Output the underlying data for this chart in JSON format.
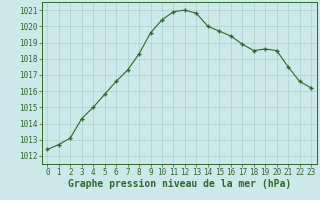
{
  "x": [
    0,
    1,
    2,
    3,
    4,
    5,
    6,
    7,
    8,
    9,
    10,
    11,
    12,
    13,
    14,
    15,
    16,
    17,
    18,
    19,
    20,
    21,
    22,
    23
  ],
  "y": [
    1012.4,
    1012.7,
    1013.1,
    1014.3,
    1015.0,
    1015.8,
    1016.6,
    1017.3,
    1018.3,
    1019.6,
    1020.4,
    1020.9,
    1021.0,
    1020.8,
    1020.0,
    1019.7,
    1019.4,
    1018.9,
    1018.5,
    1018.6,
    1018.5,
    1017.5,
    1016.6,
    1016.2
  ],
  "line_color": "#2d6a2d",
  "marker": "+",
  "bg_color": "#cce8e8",
  "grid_color": "#aed0d0",
  "label": "Graphe pression niveau de la mer (hPa)",
  "xlabel_ticks": [
    0,
    1,
    2,
    3,
    4,
    5,
    6,
    7,
    8,
    9,
    10,
    11,
    12,
    13,
    14,
    15,
    16,
    17,
    18,
    19,
    20,
    21,
    22,
    23
  ],
  "ylim": [
    1011.5,
    1021.5
  ],
  "yticks": [
    1012,
    1013,
    1014,
    1015,
    1016,
    1017,
    1018,
    1019,
    1020,
    1021
  ],
  "title_fontsize": 7,
  "tick_fontsize": 5.5,
  "title_color": "#2d6a2d",
  "marker_size": 3.5,
  "line_width": 0.8
}
